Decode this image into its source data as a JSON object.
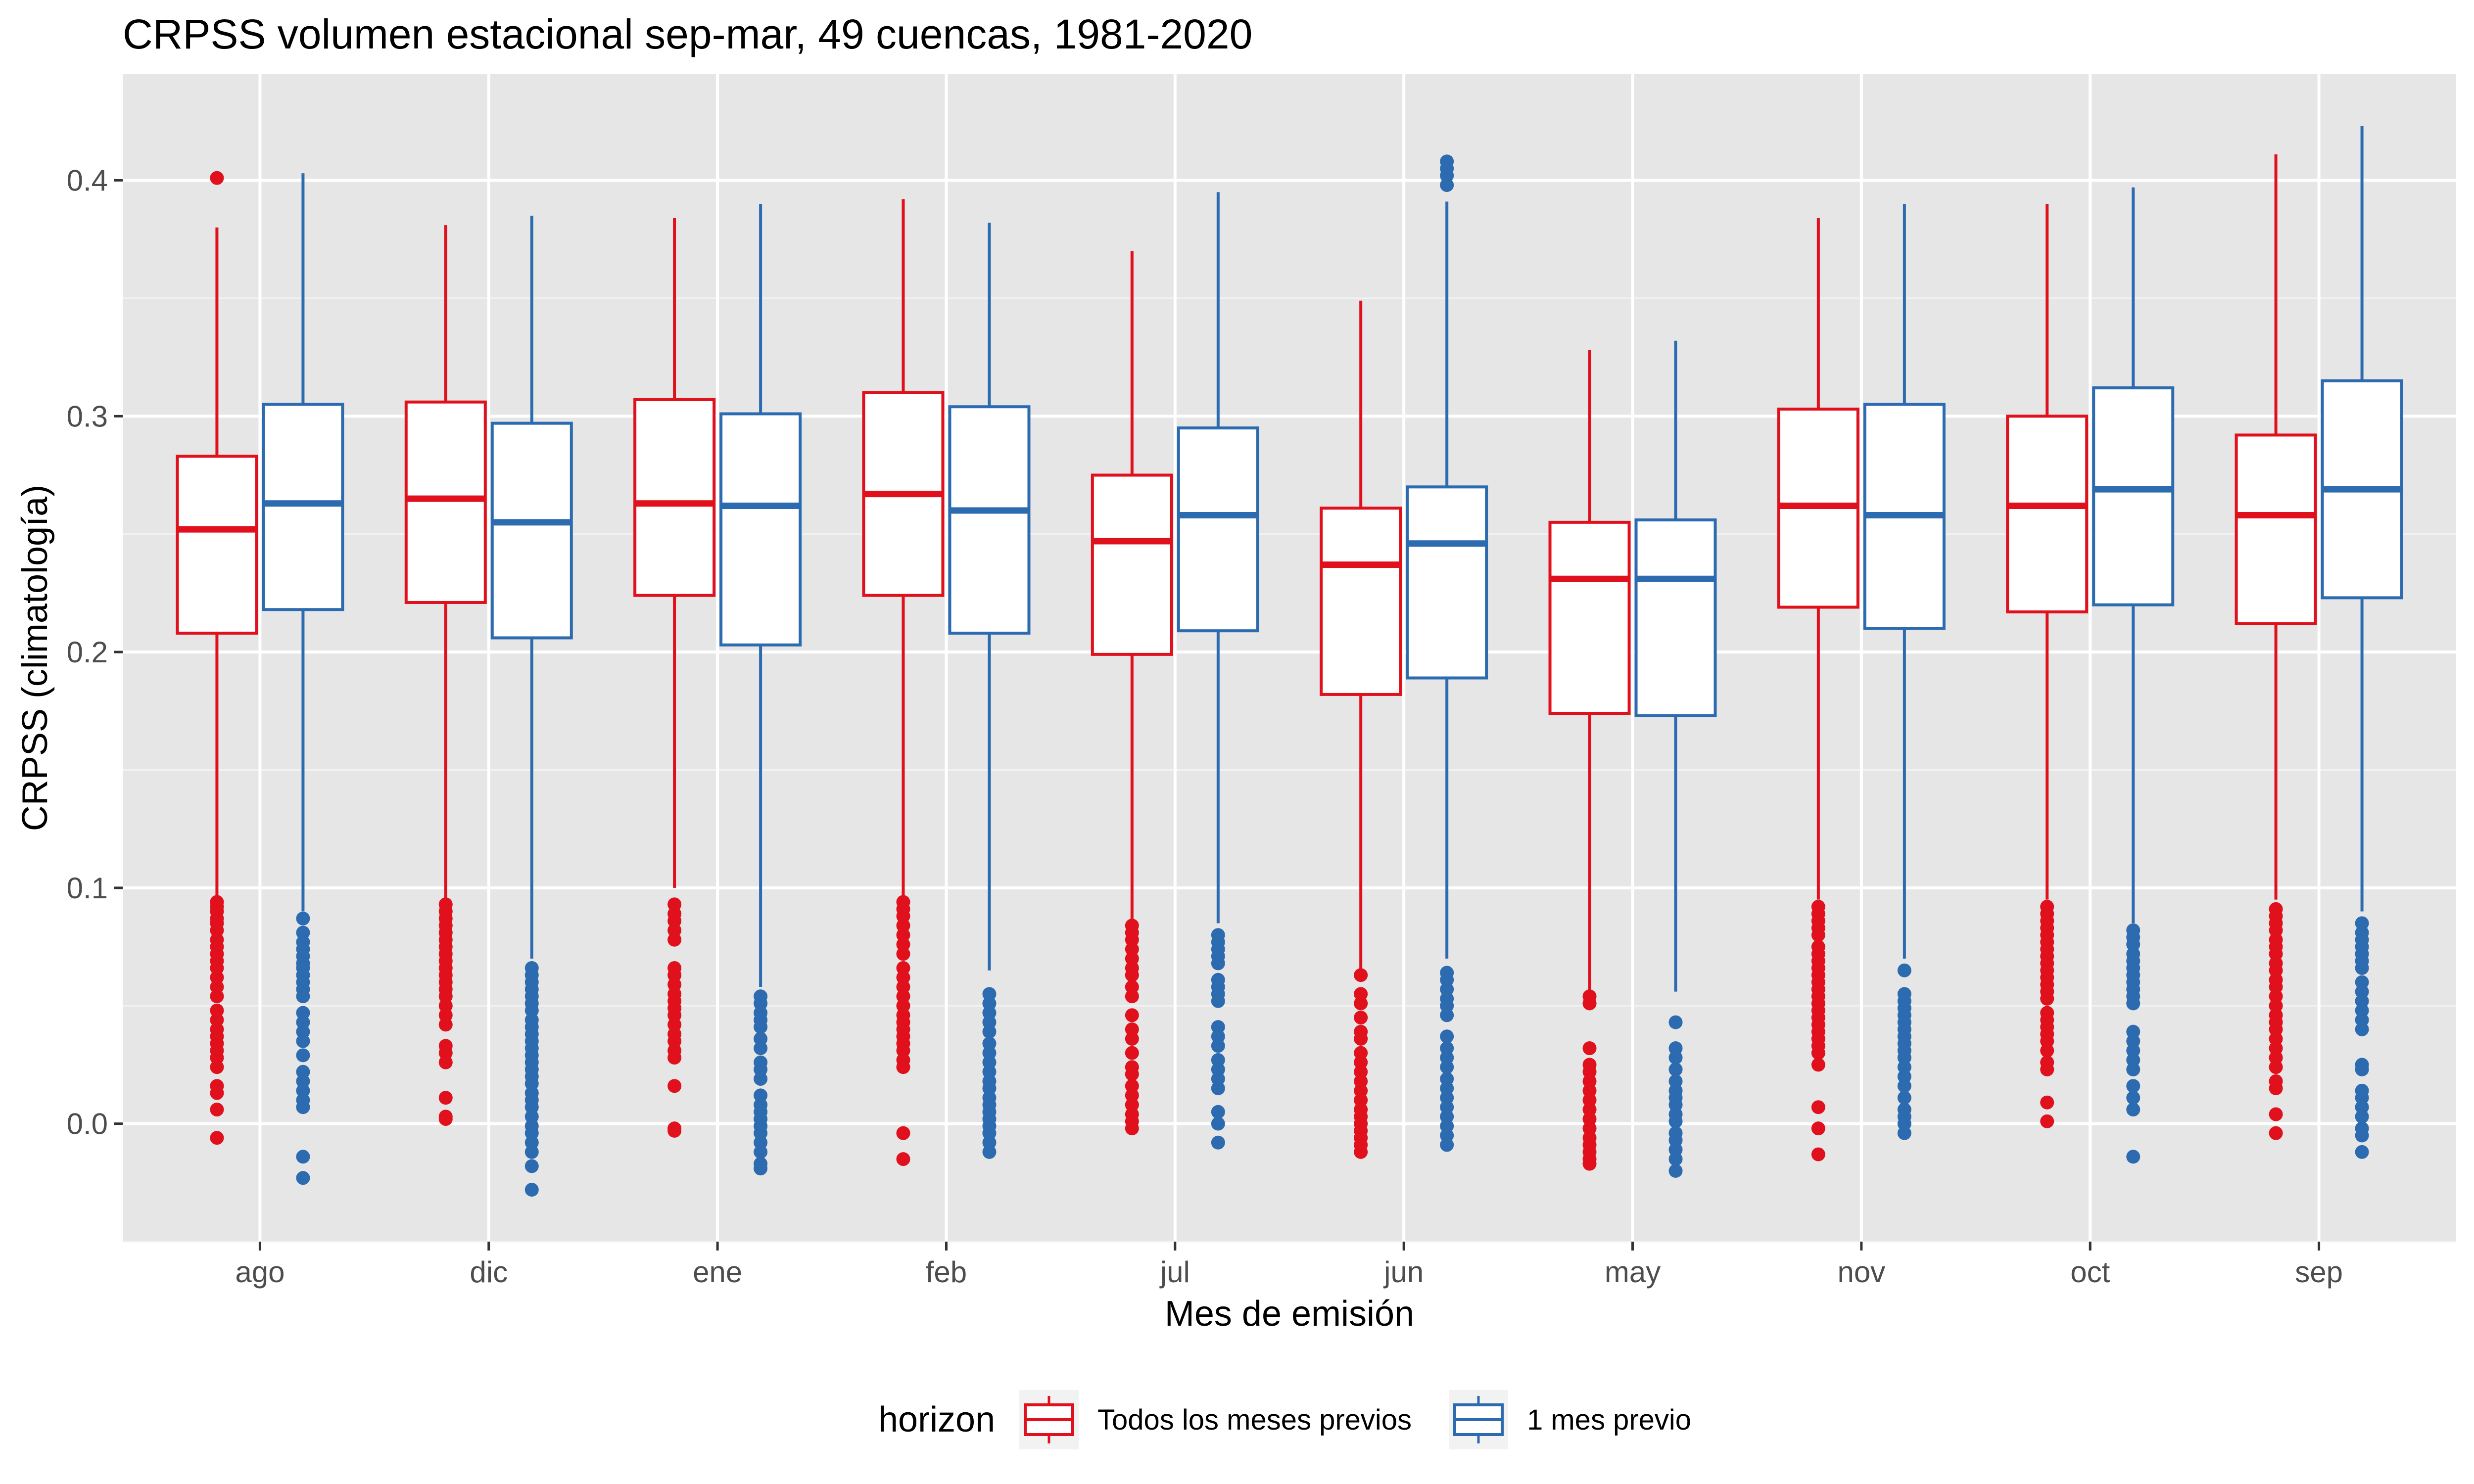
{
  "chart_data": {
    "type": "boxplot",
    "title": "CRPSS volumen estacional sep-mar, 49 cuencas, 1981-2020",
    "xlabel": "Mes de emisión",
    "ylabel": "CRPSS (climatología)",
    "ylim": [
      -0.05,
      0.445
    ],
    "yticks": [
      0.0,
      0.1,
      0.2,
      0.3,
      0.4
    ],
    "ytick_labels": [
      "0.0",
      "0.1",
      "0.2",
      "0.3",
      "0.4"
    ],
    "grid": true,
    "legend": {
      "title": "horizon",
      "position": "bottom"
    },
    "categories": [
      "ago",
      "dic",
      "ene",
      "feb",
      "jul",
      "jun",
      "may",
      "nov",
      "oct",
      "sep"
    ],
    "series": [
      {
        "name": "Todos los meses previos",
        "color": "#e0101c",
        "boxes": [
          {
            "whisker_low": 0.095,
            "q1": 0.208,
            "median": 0.252,
            "q3": 0.283,
            "whisker_high": 0.38,
            "outliers": [
              0.401,
              0.094,
              0.092,
              0.09,
              0.087,
              0.085,
              0.082,
              0.078,
              0.075,
              0.072,
              0.069,
              0.066,
              0.062,
              0.058,
              0.054,
              0.048,
              0.044,
              0.04,
              0.037,
              0.034,
              0.031,
              0.028,
              0.024,
              0.016,
              0.013,
              0.006,
              -0.006
            ]
          },
          {
            "whisker_low": 0.095,
            "q1": 0.221,
            "median": 0.265,
            "q3": 0.306,
            "whisker_high": 0.381,
            "outliers": [
              0.093,
              0.09,
              0.087,
              0.084,
              0.081,
              0.078,
              0.075,
              0.072,
              0.069,
              0.066,
              0.063,
              0.06,
              0.057,
              0.054,
              0.05,
              0.046,
              0.042,
              0.033,
              0.03,
              0.026,
              0.011,
              0.003,
              0.002
            ]
          },
          {
            "whisker_low": 0.1,
            "q1": 0.224,
            "median": 0.263,
            "q3": 0.307,
            "whisker_high": 0.384,
            "outliers": [
              0.093,
              0.089,
              0.086,
              0.082,
              0.078,
              0.066,
              0.063,
              0.059,
              0.055,
              0.052,
              0.049,
              0.046,
              0.042,
              0.038,
              0.035,
              0.031,
              0.028,
              0.016,
              -0.002,
              -0.003
            ]
          },
          {
            "whisker_low": 0.095,
            "q1": 0.224,
            "median": 0.267,
            "q3": 0.31,
            "whisker_high": 0.392,
            "outliers": [
              0.094,
              0.091,
              0.088,
              0.084,
              0.08,
              0.076,
              0.072,
              0.066,
              0.062,
              0.058,
              0.054,
              0.05,
              0.046,
              0.043,
              0.04,
              0.037,
              0.034,
              0.031,
              0.027,
              0.024,
              -0.004,
              -0.015
            ]
          },
          {
            "whisker_low": 0.085,
            "q1": 0.199,
            "median": 0.247,
            "q3": 0.275,
            "whisker_high": 0.37,
            "outliers": [
              0.084,
              0.081,
              0.078,
              0.074,
              0.07,
              0.066,
              0.063,
              0.058,
              0.054,
              0.046,
              0.04,
              0.036,
              0.03,
              0.024,
              0.021,
              0.016,
              0.012,
              0.008,
              0.004,
              0.001,
              -0.002
            ]
          },
          {
            "whisker_low": 0.065,
            "q1": 0.182,
            "median": 0.237,
            "q3": 0.261,
            "whisker_high": 0.349,
            "outliers": [
              0.063,
              0.055,
              0.051,
              0.045,
              0.039,
              0.036,
              0.03,
              0.026,
              0.022,
              0.018,
              0.014,
              0.01,
              0.006,
              0.003,
              0.0,
              -0.003,
              -0.006,
              -0.009,
              -0.012
            ]
          },
          {
            "whisker_low": 0.055,
            "q1": 0.174,
            "median": 0.231,
            "q3": 0.255,
            "whisker_high": 0.328,
            "outliers": [
              0.054,
              0.051,
              0.032,
              0.025,
              0.022,
              0.018,
              0.014,
              0.01,
              0.006,
              0.002,
              -0.002,
              -0.006,
              -0.009,
              -0.012,
              -0.015,
              -0.017
            ]
          },
          {
            "whisker_low": 0.095,
            "q1": 0.219,
            "median": 0.262,
            "q3": 0.303,
            "whisker_high": 0.384,
            "outliers": [
              0.092,
              0.089,
              0.086,
              0.083,
              0.08,
              0.075,
              0.072,
              0.069,
              0.066,
              0.063,
              0.06,
              0.057,
              0.054,
              0.051,
              0.048,
              0.045,
              0.042,
              0.039,
              0.036,
              0.033,
              0.03,
              0.025,
              0.007,
              -0.002,
              -0.013
            ]
          },
          {
            "whisker_low": 0.095,
            "q1": 0.217,
            "median": 0.262,
            "q3": 0.3,
            "whisker_high": 0.39,
            "outliers": [
              0.092,
              0.089,
              0.086,
              0.083,
              0.08,
              0.077,
              0.074,
              0.071,
              0.068,
              0.065,
              0.062,
              0.059,
              0.056,
              0.053,
              0.047,
              0.044,
              0.041,
              0.038,
              0.035,
              0.031,
              0.026,
              0.023,
              0.009,
              0.001
            ]
          },
          {
            "whisker_low": 0.095,
            "q1": 0.212,
            "median": 0.258,
            "q3": 0.292,
            "whisker_high": 0.411,
            "outliers": [
              0.091,
              0.088,
              0.085,
              0.082,
              0.078,
              0.075,
              0.072,
              0.068,
              0.065,
              0.061,
              0.058,
              0.054,
              0.05,
              0.046,
              0.043,
              0.04,
              0.036,
              0.032,
              0.028,
              0.024,
              0.018,
              0.015,
              0.004,
              -0.004
            ]
          }
        ]
      },
      {
        "name": "1 mes previo",
        "color": "#2d6bb0",
        "boxes": [
          {
            "whisker_low": 0.09,
            "q1": 0.218,
            "median": 0.263,
            "q3": 0.305,
            "whisker_high": 0.403,
            "outliers": [
              0.087,
              0.081,
              0.077,
              0.074,
              0.071,
              0.068,
              0.066,
              0.063,
              0.06,
              0.057,
              0.054,
              0.047,
              0.043,
              0.039,
              0.035,
              0.029,
              0.022,
              0.018,
              0.014,
              0.01,
              0.007,
              -0.014,
              -0.023
            ]
          },
          {
            "whisker_low": 0.07,
            "q1": 0.206,
            "median": 0.255,
            "q3": 0.297,
            "whisker_high": 0.385,
            "outliers": [
              0.066,
              0.063,
              0.06,
              0.057,
              0.054,
              0.051,
              0.048,
              0.044,
              0.041,
              0.038,
              0.035,
              0.032,
              0.029,
              0.026,
              0.023,
              0.02,
              0.017,
              0.013,
              0.01,
              0.007,
              0.003,
              -0.001,
              -0.004,
              -0.008,
              -0.012,
              -0.018,
              -0.028
            ]
          },
          {
            "whisker_low": 0.058,
            "q1": 0.203,
            "median": 0.262,
            "q3": 0.301,
            "whisker_high": 0.39,
            "outliers": [
              0.054,
              0.051,
              0.047,
              0.044,
              0.041,
              0.036,
              0.032,
              0.026,
              0.023,
              0.019,
              0.012,
              0.008,
              0.005,
              0.002,
              -0.001,
              -0.004,
              -0.008,
              -0.012,
              -0.017,
              -0.019
            ]
          },
          {
            "whisker_low": 0.065,
            "q1": 0.208,
            "median": 0.26,
            "q3": 0.304,
            "whisker_high": 0.382,
            "outliers": [
              0.055,
              0.051,
              0.047,
              0.043,
              0.039,
              0.034,
              0.03,
              0.026,
              0.022,
              0.018,
              0.015,
              0.011,
              0.008,
              0.005,
              0.002,
              -0.001,
              -0.004,
              -0.008,
              -0.012
            ]
          },
          {
            "whisker_low": 0.085,
            "q1": 0.209,
            "median": 0.258,
            "q3": 0.295,
            "whisker_high": 0.395,
            "outliers": [
              0.08,
              0.077,
              0.074,
              0.071,
              0.068,
              0.061,
              0.058,
              0.055,
              0.052,
              0.041,
              0.037,
              0.033,
              0.027,
              0.023,
              0.019,
              0.015,
              0.005,
              0.0,
              -0.008
            ]
          },
          {
            "whisker_low": 0.07,
            "q1": 0.189,
            "median": 0.246,
            "q3": 0.27,
            "whisker_high": 0.391,
            "outliers": [
              0.408,
              0.405,
              0.402,
              0.398,
              0.064,
              0.061,
              0.057,
              0.053,
              0.05,
              0.046,
              0.037,
              0.032,
              0.028,
              0.024,
              0.019,
              0.015,
              0.011,
              0.007,
              0.003,
              -0.001,
              -0.005,
              -0.009
            ]
          },
          {
            "whisker_low": 0.056,
            "q1": 0.173,
            "median": 0.231,
            "q3": 0.256,
            "whisker_high": 0.332,
            "outliers": [
              0.043,
              0.032,
              0.028,
              0.023,
              0.018,
              0.014,
              0.011,
              0.008,
              0.004,
              0.001,
              -0.004,
              -0.007,
              -0.011,
              -0.015,
              -0.02
            ]
          },
          {
            "whisker_low": 0.07,
            "q1": 0.21,
            "median": 0.258,
            "q3": 0.305,
            "whisker_high": 0.39,
            "outliers": [
              0.065,
              0.055,
              0.052,
              0.049,
              0.046,
              0.043,
              0.04,
              0.037,
              0.034,
              0.031,
              0.028,
              0.024,
              0.02,
              0.016,
              0.011,
              0.006,
              0.003,
              0.0,
              -0.004
            ]
          },
          {
            "whisker_low": 0.085,
            "q1": 0.22,
            "median": 0.269,
            "q3": 0.312,
            "whisker_high": 0.397,
            "outliers": [
              0.082,
              0.079,
              0.076,
              0.072,
              0.069,
              0.066,
              0.063,
              0.06,
              0.057,
              0.054,
              0.051,
              0.039,
              0.035,
              0.031,
              0.027,
              0.023,
              0.016,
              0.011,
              0.006,
              -0.014
            ]
          },
          {
            "whisker_low": 0.09,
            "q1": 0.223,
            "median": 0.269,
            "q3": 0.315,
            "whisker_high": 0.423,
            "outliers": [
              0.085,
              0.081,
              0.078,
              0.075,
              0.072,
              0.069,
              0.066,
              0.06,
              0.056,
              0.052,
              0.048,
              0.044,
              0.04,
              0.025,
              0.023,
              0.014,
              0.011,
              0.007,
              0.003,
              -0.002,
              -0.005,
              -0.012
            ]
          }
        ]
      }
    ]
  }
}
